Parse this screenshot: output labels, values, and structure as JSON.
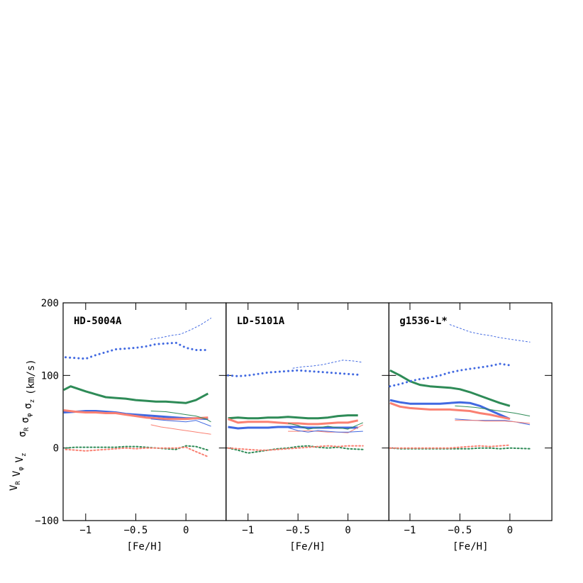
{
  "chart_data": [
    {
      "type": "line",
      "title": "HD-5004A",
      "xlabel": "[Fe/H]",
      "ylabel": [
        [
          "V",
          "R"
        ],
        [
          "V",
          "φ"
        ],
        [
          "V",
          "z"
        ],
        [
          "σ",
          "R"
        ],
        [
          "σ",
          "φ"
        ],
        [
          "σ",
          "z"
        ]
      ],
      "ylabel_unit": "(km/s)",
      "xlim": [
        -1.225,
        0.4
      ],
      "xticks": [
        {
          "value": -1,
          "label": "−1"
        },
        {
          "value": -0.5,
          "label": "−0.5"
        },
        0
      ],
      "ylim": [
        -100,
        200
      ],
      "yticks": [
        {
          "value": -100,
          "label": "−100"
        },
        0,
        100,
        200
      ],
      "series": [
        {
          "color": "#4169e1",
          "style": "dotted",
          "lw": 3,
          "x": [
            -1.2,
            -1.1,
            -1.0,
            -0.9,
            -0.8,
            -0.7,
            -0.6,
            -0.5,
            -0.4,
            -0.3,
            -0.2,
            -0.1,
            0.0,
            0.1,
            0.2
          ],
          "values": [
            125,
            124,
            123,
            128,
            132,
            136,
            137,
            138,
            140,
            143,
            144,
            145,
            138,
            135,
            135
          ]
        },
        {
          "color": "#4169e1",
          "style": "dotted",
          "lw": 1,
          "x": [
            -0.35,
            -0.25,
            -0.15,
            -0.05,
            0.05,
            0.15,
            0.25
          ],
          "values": [
            150,
            152,
            155,
            157,
            163,
            170,
            179
          ]
        },
        {
          "color": "#2e8b57",
          "style": "solid",
          "lw": 3,
          "x": [
            -1.22,
            -1.15,
            -1.0,
            -0.9,
            -0.8,
            -0.7,
            -0.6,
            -0.5,
            -0.4,
            -0.3,
            -0.2,
            -0.1,
            0.0,
            0.1,
            0.22
          ],
          "values": [
            80,
            85,
            78,
            74,
            70,
            69,
            68,
            66,
            65,
            64,
            64,
            63,
            62,
            66,
            75
          ]
        },
        {
          "color": "#4169e1",
          "style": "solid",
          "lw": 3,
          "x": [
            -1.22,
            -1.1,
            -1.0,
            -0.9,
            -0.8,
            -0.7,
            -0.6,
            -0.5,
            -0.4,
            -0.3,
            -0.2,
            -0.1,
            0.0,
            0.1,
            0.22
          ],
          "values": [
            49,
            50,
            51,
            51,
            50,
            49,
            47,
            46,
            45,
            44,
            43,
            42,
            41,
            41,
            40
          ]
        },
        {
          "color": "#fa8072",
          "style": "solid",
          "lw": 3,
          "x": [
            -1.22,
            -1.1,
            -1.0,
            -0.9,
            -0.8,
            -0.7,
            -0.6,
            -0.5,
            -0.4,
            -0.3,
            -0.2,
            -0.1,
            0.0,
            0.1,
            0.22
          ],
          "values": [
            52,
            50,
            49,
            49,
            48,
            48,
            46,
            44,
            42,
            41,
            40,
            40,
            40,
            41,
            42
          ]
        },
        {
          "color": "#2e8b57",
          "style": "solid",
          "lw": 1,
          "x": [
            -0.35,
            -0.2,
            0.0,
            0.1,
            0.2,
            0.25
          ],
          "values": [
            51,
            50,
            46,
            44,
            40,
            36
          ]
        },
        {
          "color": "#4169e1",
          "style": "solid",
          "lw": 1,
          "x": [
            -0.35,
            -0.2,
            0.0,
            0.1,
            0.25
          ],
          "values": [
            40,
            38,
            36,
            38,
            30
          ]
        },
        {
          "color": "#fa8072",
          "style": "solid",
          "lw": 1,
          "x": [
            -0.35,
            -0.25,
            -0.15,
            -0.05,
            0.05,
            0.15,
            0.25
          ],
          "values": [
            32,
            29,
            27,
            25,
            23,
            21,
            19
          ]
        },
        {
          "color": "#2e8b57",
          "style": "dotted",
          "lw": 2,
          "x": [
            -1.2,
            -1.1,
            -1.0,
            -0.9,
            -0.8,
            -0.7,
            -0.6,
            -0.5,
            -0.4,
            -0.3,
            -0.2,
            -0.1,
            0.0,
            0.1,
            0.22
          ],
          "values": [
            0,
            1,
            1,
            1,
            1,
            1,
            2,
            2,
            1,
            0,
            -1,
            -2,
            3,
            2,
            -3
          ]
        },
        {
          "color": "#fa8072",
          "style": "dotted",
          "lw": 2,
          "x": [
            -1.2,
            -1.1,
            -1.0,
            -0.9,
            -0.8,
            -0.7,
            -0.6,
            -0.5,
            -0.4,
            -0.3,
            -0.2,
            -0.1,
            0.0,
            0.1,
            0.22
          ],
          "values": [
            -2,
            -3,
            -4,
            -3,
            -2,
            -1,
            0,
            -1,
            0,
            0,
            0,
            0,
            1,
            -5,
            -12
          ]
        }
      ]
    },
    {
      "type": "line",
      "title": "LD-5101A",
      "xlabel": "[Fe/H]",
      "xlim": [
        -1.22,
        0.41
      ],
      "xticks": [
        {
          "value": -1,
          "label": "−1"
        },
        {
          "value": -0.5,
          "label": "−0.5"
        },
        0
      ],
      "ylim": [
        -100,
        200
      ],
      "yticks": [
        -100,
        0,
        100,
        200
      ],
      "series": [
        {
          "color": "#4169e1",
          "style": "dotted",
          "lw": 3,
          "x": [
            -1.2,
            -1.1,
            -1.0,
            -0.9,
            -0.8,
            -0.7,
            -0.6,
            -0.5,
            -0.4,
            -0.3,
            -0.2,
            -0.1,
            0.0,
            0.1
          ],
          "values": [
            100,
            99,
            100,
            102,
            104,
            105,
            106,
            107,
            106,
            105,
            104,
            103,
            102,
            101
          ]
        },
        {
          "color": "#4169e1",
          "style": "dotted",
          "lw": 1,
          "x": [
            -0.55,
            -0.45,
            -0.35,
            -0.25,
            -0.15,
            -0.05,
            0.05,
            0.15
          ],
          "values": [
            110,
            112,
            113,
            115,
            118,
            121,
            120,
            118
          ]
        },
        {
          "color": "#2e8b57",
          "style": "solid",
          "lw": 3,
          "x": [
            -1.2,
            -1.1,
            -1.0,
            -0.9,
            -0.8,
            -0.7,
            -0.6,
            -0.5,
            -0.4,
            -0.3,
            -0.2,
            -0.1,
            0.0,
            0.1
          ],
          "values": [
            41,
            42,
            41,
            41,
            42,
            42,
            43,
            42,
            41,
            41,
            42,
            44,
            45,
            45
          ]
        },
        {
          "color": "#fa8072",
          "style": "solid",
          "lw": 3,
          "x": [
            -1.2,
            -1.1,
            -1.0,
            -0.9,
            -0.8,
            -0.7,
            -0.6,
            -0.5,
            -0.4,
            -0.3,
            -0.2,
            -0.1,
            0.0,
            0.1
          ],
          "values": [
            40,
            35,
            36,
            36,
            36,
            35,
            34,
            34,
            33,
            33,
            34,
            35,
            35,
            38
          ]
        },
        {
          "color": "#4169e1",
          "style": "solid",
          "lw": 3,
          "x": [
            -1.2,
            -1.1,
            -1.0,
            -0.9,
            -0.8,
            -0.7,
            -0.6,
            -0.5,
            -0.4,
            -0.3,
            -0.2,
            -0.1,
            0.0,
            0.1
          ],
          "values": [
            29,
            27,
            28,
            28,
            28,
            29,
            29,
            29,
            28,
            28,
            28,
            28,
            28,
            28
          ]
        },
        {
          "color": "#2e8b57",
          "style": "solid",
          "lw": 1,
          "x": [
            -0.6,
            -0.5,
            -0.4,
            -0.3,
            -0.2,
            -0.1,
            0.0,
            0.15
          ],
          "values": [
            34,
            31,
            26,
            28,
            30,
            28,
            26,
            35
          ]
        },
        {
          "color": "#fa8072",
          "style": "solid",
          "lw": 1,
          "x": [
            -0.6,
            -0.5,
            -0.4,
            -0.3,
            -0.2,
            -0.1,
            0.0,
            0.15
          ],
          "values": [
            23,
            23,
            24,
            23,
            22,
            22,
            21,
            32
          ]
        },
        {
          "color": "#4169e1",
          "style": "solid",
          "lw": 1,
          "x": [
            -0.6,
            -0.5,
            -0.4,
            -0.3,
            -0.2,
            -0.1,
            0.0,
            0.15
          ],
          "values": [
            28,
            24,
            22,
            24,
            23,
            22,
            22,
            23
          ]
        },
        {
          "color": "#2e8b57",
          "style": "dotted",
          "lw": 2,
          "x": [
            -1.2,
            -1.1,
            -1.0,
            -0.9,
            -0.8,
            -0.7,
            -0.6,
            -0.5,
            -0.4,
            -0.3,
            -0.2,
            -0.1,
            0.0,
            0.15
          ],
          "values": [
            0,
            -3,
            -7,
            -5,
            -3,
            -1,
            0,
            2,
            3,
            1,
            0,
            1,
            -1,
            -2
          ]
        },
        {
          "color": "#fa8072",
          "style": "dotted",
          "lw": 2,
          "x": [
            -1.2,
            -1.1,
            -1.0,
            -0.9,
            -0.8,
            -0.7,
            -0.6,
            -0.5,
            -0.4,
            -0.3,
            -0.2,
            -0.1,
            0.0,
            0.15
          ],
          "values": [
            0,
            -1,
            -2,
            -3,
            -3,
            -2,
            -1,
            0,
            1,
            2,
            3,
            2,
            3,
            3
          ]
        }
      ]
    },
    {
      "type": "line",
      "title": "g1536-L*",
      "xlabel": "[Fe/H]",
      "xlim": [
        -1.21,
        0.42
      ],
      "xticks": [
        {
          "value": -1,
          "label": "−1"
        },
        {
          "value": -0.5,
          "label": "−0.5"
        },
        0
      ],
      "ylim": [
        -100,
        200
      ],
      "yticks": [
        -100,
        0,
        100,
        200
      ],
      "series": [
        {
          "color": "#2e8b57",
          "style": "solid",
          "lw": 3,
          "x": [
            -1.2,
            -1.1,
            -1.0,
            -0.9,
            -0.8,
            -0.7,
            -0.6,
            -0.5,
            -0.4,
            -0.3,
            -0.2,
            -0.1,
            0.0
          ],
          "values": [
            107,
            100,
            92,
            87,
            85,
            84,
            83,
            81,
            77,
            72,
            67,
            62,
            58
          ]
        },
        {
          "color": "#4169e1",
          "style": "dotted",
          "lw": 3,
          "x": [
            -1.2,
            -1.1,
            -1.0,
            -0.9,
            -0.8,
            -0.7,
            -0.6,
            -0.5,
            -0.4,
            -0.3,
            -0.2,
            -0.1,
            0.0
          ],
          "values": [
            85,
            88,
            92,
            95,
            97,
            100,
            104,
            107,
            109,
            111,
            113,
            116,
            114
          ]
        },
        {
          "color": "#4169e1",
          "style": "dotted",
          "lw": 1,
          "x": [
            -0.6,
            -0.5,
            -0.4,
            -0.3,
            -0.2,
            -0.1,
            0.0,
            0.1,
            0.2
          ],
          "values": [
            170,
            165,
            160,
            157,
            155,
            152,
            150,
            148,
            146
          ]
        },
        {
          "color": "#4169e1",
          "style": "solid",
          "lw": 3,
          "x": [
            -1.2,
            -1.1,
            -1.0,
            -0.9,
            -0.8,
            -0.7,
            -0.6,
            -0.5,
            -0.4,
            -0.3,
            -0.2,
            -0.1,
            0.0
          ],
          "values": [
            66,
            63,
            61,
            61,
            61,
            61,
            62,
            63,
            62,
            58,
            52,
            46,
            40
          ]
        },
        {
          "color": "#fa8072",
          "style": "solid",
          "lw": 3,
          "x": [
            -1.2,
            -1.1,
            -1.0,
            -0.9,
            -0.8,
            -0.7,
            -0.6,
            -0.5,
            -0.4,
            -0.3,
            -0.2,
            -0.1,
            0.0
          ],
          "values": [
            62,
            57,
            55,
            54,
            53,
            53,
            53,
            52,
            51,
            48,
            46,
            43,
            40
          ]
        },
        {
          "color": "#2e8b57",
          "style": "solid",
          "lw": 1,
          "x": [
            -0.55,
            -0.45,
            -0.35,
            -0.25,
            -0.15,
            -0.05,
            0.05,
            0.2
          ],
          "values": [
            58,
            57,
            56,
            54,
            52,
            50,
            48,
            44
          ]
        },
        {
          "color": "#4169e1",
          "style": "solid",
          "lw": 1,
          "x": [
            -0.55,
            -0.45,
            -0.35,
            -0.25,
            -0.15,
            -0.05,
            0.05,
            0.2
          ],
          "values": [
            40,
            39,
            38,
            38,
            38,
            38,
            36,
            32
          ]
        },
        {
          "color": "#fa8072",
          "style": "solid",
          "lw": 1,
          "x": [
            -0.55,
            -0.45,
            -0.35,
            -0.25,
            -0.15,
            -0.05,
            0.05,
            0.2
          ],
          "values": [
            38,
            38,
            38,
            37,
            37,
            37,
            36,
            34
          ]
        },
        {
          "color": "#2e8b57",
          "style": "dotted",
          "lw": 2,
          "x": [
            -1.2,
            -1.1,
            -1.0,
            -0.9,
            -0.8,
            -0.7,
            -0.6,
            -0.5,
            -0.4,
            -0.3,
            -0.2,
            -0.1,
            0.0,
            0.2
          ],
          "values": [
            0,
            -1,
            -1,
            -1,
            -1,
            -1,
            -1,
            -1,
            -1,
            0,
            0,
            -1,
            0,
            -1
          ]
        },
        {
          "color": "#fa8072",
          "style": "dotted",
          "lw": 2,
          "x": [
            -1.2,
            -1.1,
            -1.0,
            -0.9,
            -0.8,
            -0.7,
            -0.6,
            -0.5,
            -0.4,
            -0.3,
            -0.2,
            -0.1,
            0.0
          ],
          "values": [
            0,
            0,
            0,
            0,
            0,
            0,
            0,
            1,
            2,
            3,
            2,
            3,
            4
          ]
        }
      ]
    }
  ]
}
